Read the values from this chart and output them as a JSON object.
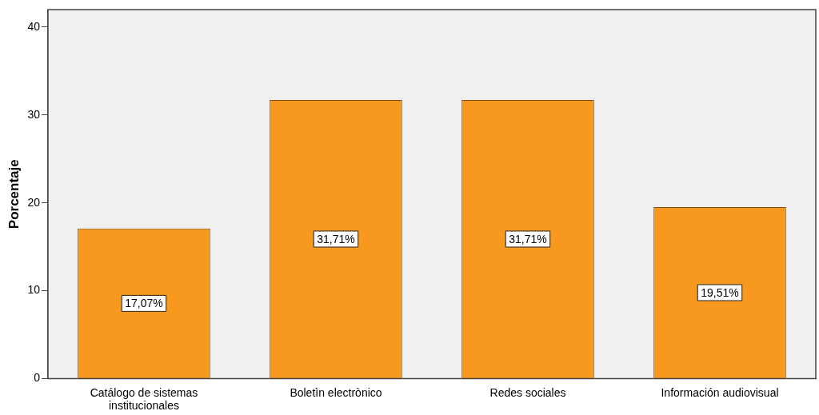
{
  "chart_data": {
    "type": "bar",
    "ylabel": "Porcentaje",
    "categories": [
      "Catálogo de sistemas institucionales",
      "Boletìn electrònico",
      "Redes sociales",
      "Información audiovisual"
    ],
    "values": [
      17.07,
      31.71,
      31.71,
      19.51
    ],
    "value_labels": [
      "17,07%",
      "31,71%",
      "31,71%",
      "19,51%"
    ],
    "color": "#f7991f",
    "ylim": [
      0,
      42
    ],
    "yticks": [
      0,
      10,
      20,
      30,
      40
    ],
    "grid": false,
    "legend": false
  }
}
